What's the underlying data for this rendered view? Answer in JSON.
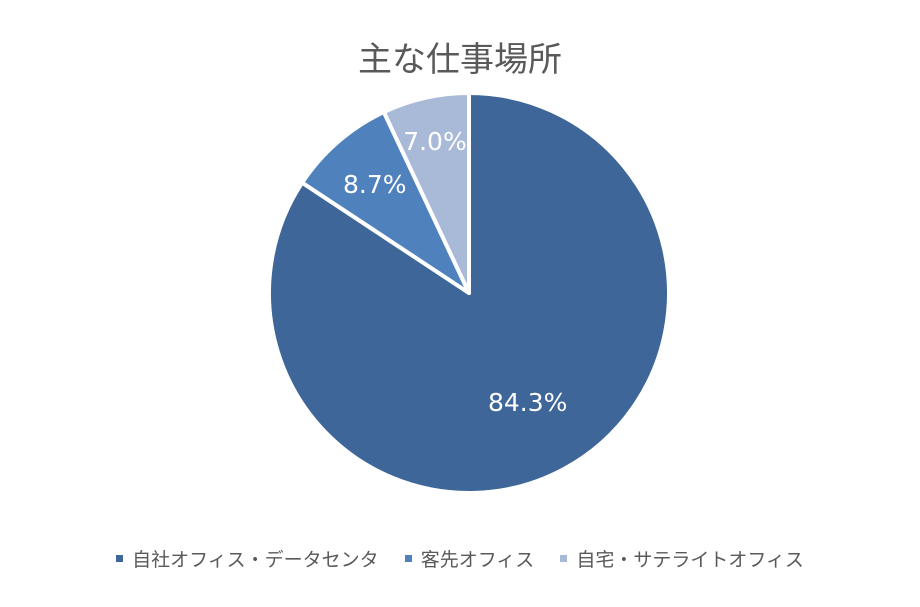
{
  "chart_data": {
    "type": "pie",
    "title": "主な仕事場所",
    "start_angle": "top",
    "direction": "clockwise",
    "slices": [
      {
        "label": "自社オフィス・データセンタ",
        "value": 84.3,
        "display": "84.3%",
        "color": "#3E6699"
      },
      {
        "label": "客先オフィス",
        "value": 8.7,
        "display": "8.7%",
        "color": "#4F81BD"
      },
      {
        "label": "自宅・サテライトオフィス",
        "value": 7.0,
        "display": "7.0%",
        "color": "#A9B9D8"
      }
    ],
    "legend_position": "bottom"
  }
}
